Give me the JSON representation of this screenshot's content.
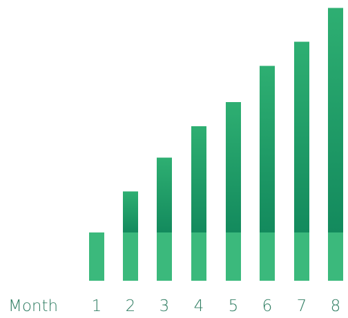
{
  "chart_data": {
    "type": "bar",
    "title": "",
    "xlabel": "Month",
    "ylabel": "",
    "grid": false,
    "categories": [
      "1",
      "2",
      "3",
      "4",
      "5",
      "6",
      "7",
      "8"
    ],
    "series": [
      {
        "values": [
          1.0,
          1.0,
          1.0,
          1.0,
          1.0,
          1.0,
          1.0,
          1.0
        ]
      },
      {
        "values": [
          0.0,
          0.85,
          1.55,
          2.2,
          2.7,
          3.45,
          3.95,
          4.65
        ]
      }
    ],
    "colors": {
      "base": "#3bb97c",
      "top_dark": "#138a5d",
      "top_light": "#2eaf72",
      "label": "#2f7d62"
    }
  }
}
